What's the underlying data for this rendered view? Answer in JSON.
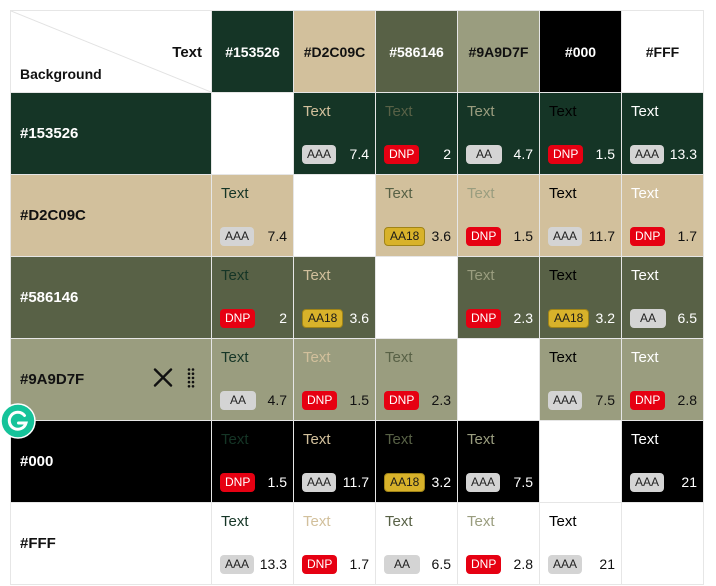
{
  "header": {
    "text_label": "Text",
    "background_label": "Background"
  },
  "colors": [
    {
      "name": "#153526",
      "hex": "#153526",
      "light": true
    },
    {
      "name": "#D2C09C",
      "hex": "#D2C09C",
      "light": false
    },
    {
      "name": "#586146",
      "hex": "#586146",
      "light": true
    },
    {
      "name": "#9A9D7F",
      "hex": "#9A9D7F",
      "light": false
    },
    {
      "name": "#000",
      "hex": "#000000",
      "light": true
    },
    {
      "name": "#FFF",
      "hex": "#FFFFFF",
      "light": false
    }
  ],
  "sample_text": "Text",
  "rows": [
    {
      "cells": [
        null,
        {
          "rating": "AAA",
          "ratio": "7.4"
        },
        {
          "rating": "DNP",
          "ratio": "2"
        },
        {
          "rating": "AA",
          "ratio": "4.7"
        },
        {
          "rating": "DNP",
          "ratio": "1.5"
        },
        {
          "rating": "AAA",
          "ratio": "13.3"
        }
      ]
    },
    {
      "cells": [
        {
          "rating": "AAA",
          "ratio": "7.4"
        },
        null,
        {
          "rating": "AA18",
          "ratio": "3.6"
        },
        {
          "rating": "DNP",
          "ratio": "1.5"
        },
        {
          "rating": "AAA",
          "ratio": "11.7"
        },
        {
          "rating": "DNP",
          "ratio": "1.7"
        }
      ]
    },
    {
      "cells": [
        {
          "rating": "DNP",
          "ratio": "2"
        },
        {
          "rating": "AA18",
          "ratio": "3.6"
        },
        null,
        {
          "rating": "DNP",
          "ratio": "2.3"
        },
        {
          "rating": "AA18",
          "ratio": "3.2"
        },
        {
          "rating": "AA",
          "ratio": "6.5"
        }
      ]
    },
    {
      "cells": [
        {
          "rating": "AA",
          "ratio": "4.7"
        },
        {
          "rating": "DNP",
          "ratio": "1.5"
        },
        {
          "rating": "DNP",
          "ratio": "2.3"
        },
        null,
        {
          "rating": "AAA",
          "ratio": "7.5"
        },
        {
          "rating": "DNP",
          "ratio": "2.8"
        }
      ]
    },
    {
      "cells": [
        {
          "rating": "DNP",
          "ratio": "1.5"
        },
        {
          "rating": "AAA",
          "ratio": "11.7"
        },
        {
          "rating": "AA18",
          "ratio": "3.2"
        },
        {
          "rating": "AAA",
          "ratio": "7.5"
        },
        null,
        {
          "rating": "AAA",
          "ratio": "21"
        }
      ]
    },
    {
      "cells": [
        {
          "rating": "AAA",
          "ratio": "13.3"
        },
        {
          "rating": "DNP",
          "ratio": "1.7"
        },
        {
          "rating": "AA",
          "ratio": "6.5"
        },
        {
          "rating": "DNP",
          "ratio": "2.8"
        },
        {
          "rating": "AAA",
          "ratio": "21"
        },
        null
      ]
    }
  ],
  "hover_row_index": 3,
  "row_tools": {
    "remove_icon": "close-icon",
    "drag_icon": "drag-handle-icon"
  },
  "floating_icon": "grammarly-icon"
}
